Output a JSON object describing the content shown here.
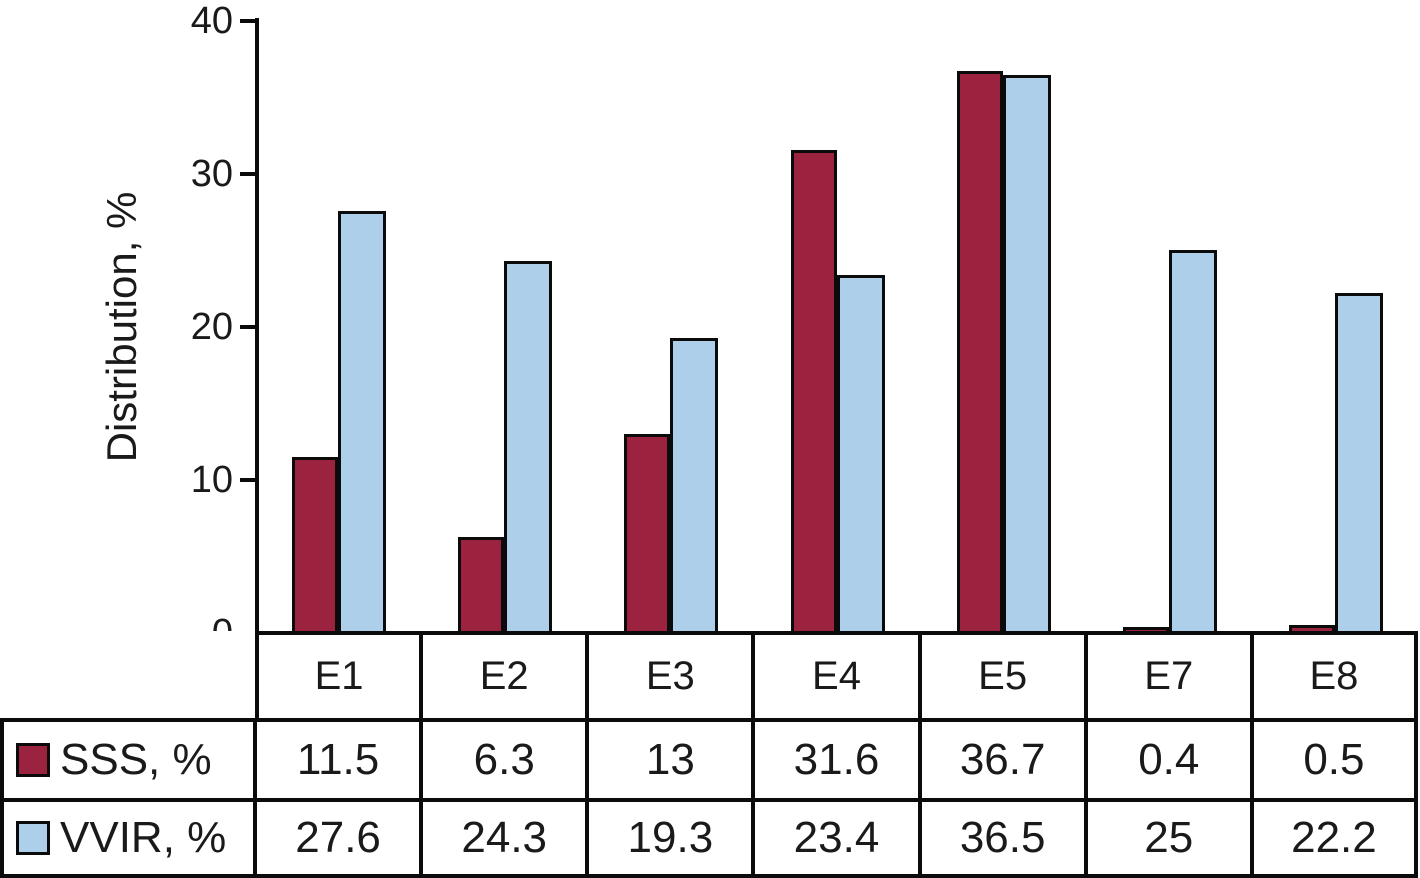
{
  "figure": {
    "kind": "grouped bar chart with data table"
  },
  "chart_data": {
    "type": "bar",
    "title": "",
    "xlabel": "",
    "ylabel": "Distribution, %",
    "ylim": [
      0,
      40
    ],
    "yticks": [
      0,
      10,
      20,
      30,
      40
    ],
    "grid": false,
    "legend_position": "table-left",
    "categories": [
      "E1",
      "E2",
      "E3",
      "E4",
      "E5",
      "E7",
      "E8"
    ],
    "series": [
      {
        "name": "SSS, %",
        "color": "#9B2340",
        "values": [
          11.5,
          6.3,
          13,
          31.6,
          36.7,
          0.4,
          0.5
        ]
      },
      {
        "name": "VVIR, %",
        "color": "#AECFEA",
        "values": [
          27.6,
          24.3,
          19.3,
          23.4,
          36.5,
          25,
          22.2
        ]
      }
    ]
  },
  "colors": {
    "sss": "#9B2340",
    "vvir": "#AECFEA",
    "line": "#0B0B0B",
    "text": "#1A1A1A",
    "background": "#FFFFFF"
  }
}
